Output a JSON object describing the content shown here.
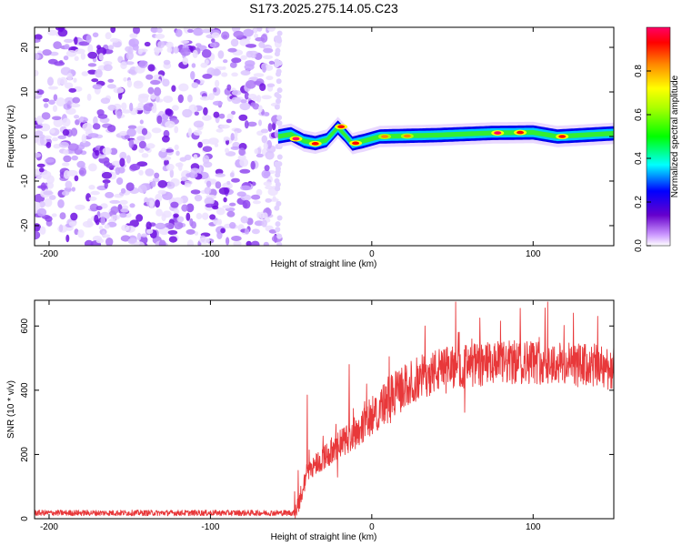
{
  "title": "S173.2025.275.14.05.C23",
  "colors": {
    "snr_line": "#e8383a",
    "background": "#ffffff",
    "axis": "#000000",
    "noise": "#7b2fe0"
  },
  "chart_data": [
    {
      "type": "heatmap",
      "name": "spectrogram",
      "xlabel": "Height of straight line (km)",
      "ylabel": "Frequency (Hz)",
      "xlim": [
        -209,
        150
      ],
      "ylim": [
        -24.5,
        24.5
      ],
      "x_ticks": [
        {
          "value": -200,
          "label": "-200"
        },
        {
          "value": -100,
          "label": "-100"
        },
        {
          "value": 0,
          "label": "0"
        },
        {
          "value": 100,
          "label": "100"
        }
      ],
      "y_ticks": [
        {
          "value": 20,
          "label": "20"
        },
        {
          "value": 10,
          "label": "10"
        },
        {
          "value": 0,
          "label": "0"
        },
        {
          "value": -10,
          "label": "-10"
        },
        {
          "value": -20,
          "label": "-20"
        }
      ],
      "noise_region_x": [
        -209,
        -58
      ],
      "signal_start_x": -58,
      "signal_track": [
        {
          "x": -58,
          "f": 0
        },
        {
          "x": -50,
          "f": 0.5
        },
        {
          "x": -42,
          "f": -1
        },
        {
          "x": -35,
          "f": -1.5
        },
        {
          "x": -28,
          "f": -0.8
        },
        {
          "x": -21,
          "f": 2
        },
        {
          "x": -17,
          "f": 0.5
        },
        {
          "x": -12,
          "f": -1.6
        },
        {
          "x": -5,
          "f": -1
        },
        {
          "x": 5,
          "f": 0
        },
        {
          "x": 40,
          "f": 0.3
        },
        {
          "x": 75,
          "f": 0.8
        },
        {
          "x": 100,
          "f": 0.9
        },
        {
          "x": 115,
          "f": 0
        },
        {
          "x": 150,
          "f": 0.7
        }
      ],
      "peaks": [
        {
          "x": -47,
          "f": -0.5,
          "a": 0.95
        },
        {
          "x": -35,
          "f": -1.6,
          "a": 0.9
        },
        {
          "x": -19,
          "f": 2.2,
          "a": 0.85
        },
        {
          "x": -10,
          "f": -1.5,
          "a": 0.88
        },
        {
          "x": 8,
          "f": 0,
          "a": 0.8
        },
        {
          "x": 22,
          "f": 0.1,
          "a": 0.75
        },
        {
          "x": 78,
          "f": 0.8,
          "a": 0.95
        },
        {
          "x": 92,
          "f": 0.9,
          "a": 0.9
        },
        {
          "x": 118,
          "f": 0,
          "a": 0.92
        }
      ],
      "colorbar": {
        "label": "Normalized spectral amplitude",
        "range": [
          0,
          1
        ],
        "ticks": [
          {
            "value": 0,
            "label": "0.0"
          },
          {
            "value": 0.2,
            "label": "0.2"
          },
          {
            "value": 0.4,
            "label": "0.4"
          },
          {
            "value": 0.6,
            "label": "0.6"
          },
          {
            "value": 0.8,
            "label": "0.8"
          }
        ]
      }
    },
    {
      "type": "line",
      "name": "snr",
      "xlabel": "Height of straight line (km)",
      "ylabel": "SNR (10 * v/v)",
      "xlim": [
        -209,
        150
      ],
      "ylim": [
        0,
        680
      ],
      "x_ticks": [
        {
          "value": -200,
          "label": "-200"
        },
        {
          "value": -100,
          "label": "-100"
        },
        {
          "value": 0,
          "label": "0"
        },
        {
          "value": 100,
          "label": "100"
        }
      ],
      "y_ticks": [
        {
          "value": 0,
          "label": "0"
        },
        {
          "value": 200,
          "label": "200"
        },
        {
          "value": 400,
          "label": "400"
        },
        {
          "value": 600,
          "label": "600"
        }
      ],
      "baseline": [
        {
          "x": -209,
          "y": 18
        },
        {
          "x": -48,
          "y": 18
        },
        {
          "x": -44,
          "y": 60
        },
        {
          "x": -40,
          "y": 150
        },
        {
          "x": -30,
          "y": 190
        },
        {
          "x": -20,
          "y": 230
        },
        {
          "x": -10,
          "y": 270
        },
        {
          "x": 0,
          "y": 320
        },
        {
          "x": 10,
          "y": 370
        },
        {
          "x": 20,
          "y": 410
        },
        {
          "x": 30,
          "y": 440
        },
        {
          "x": 40,
          "y": 460
        },
        {
          "x": 50,
          "y": 470
        },
        {
          "x": 70,
          "y": 480
        },
        {
          "x": 100,
          "y": 490
        },
        {
          "x": 120,
          "y": 480
        },
        {
          "x": 150,
          "y": 470
        }
      ],
      "spikes": [
        {
          "x": -40,
          "y": 385
        },
        {
          "x": -14,
          "y": 480
        },
        {
          "x": 33,
          "y": 600
        },
        {
          "x": 52,
          "y": 675
        },
        {
          "x": 67,
          "y": 625
        },
        {
          "x": 92,
          "y": 655
        },
        {
          "x": 109,
          "y": 675
        },
        {
          "x": 125,
          "y": 640
        },
        {
          "x": 140,
          "y": 630
        }
      ]
    }
  ]
}
